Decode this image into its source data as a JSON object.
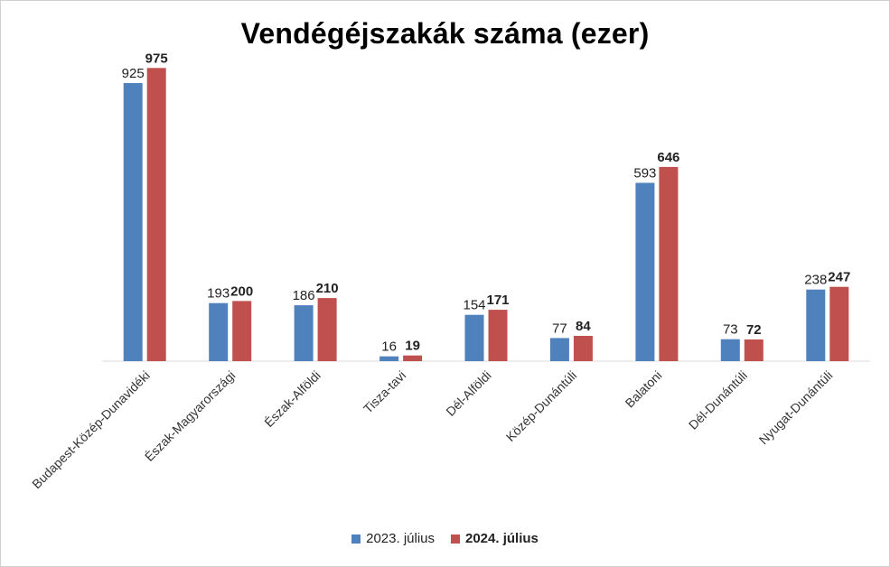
{
  "chart_data": {
    "type": "bar",
    "title": "Vendégéjszakák száma (ezer)",
    "categories": [
      "Budapest-Közép-Dunavidéki",
      "Észak-Magyarországi",
      "Észak-Alföldi",
      "Tisza-tavi",
      "Dél-Alföldi",
      "Közép-Dunántúli",
      "Balatoni",
      "Dél-Dunántúli",
      "Nyugat-Dunántúli"
    ],
    "series": [
      {
        "name": "2023. július",
        "color": "#4f81bd",
        "label_bold": false,
        "values": [
          925,
          193,
          186,
          16,
          154,
          77,
          593,
          73,
          238
        ]
      },
      {
        "name": "2024. július",
        "color": "#c0504d",
        "label_bold": true,
        "values": [
          975,
          200,
          210,
          19,
          171,
          84,
          646,
          72,
          247
        ]
      }
    ],
    "ylim": [
      0,
      1000
    ],
    "xlabel": "",
    "ylabel": "",
    "grid": false,
    "legend": "bottom"
  }
}
